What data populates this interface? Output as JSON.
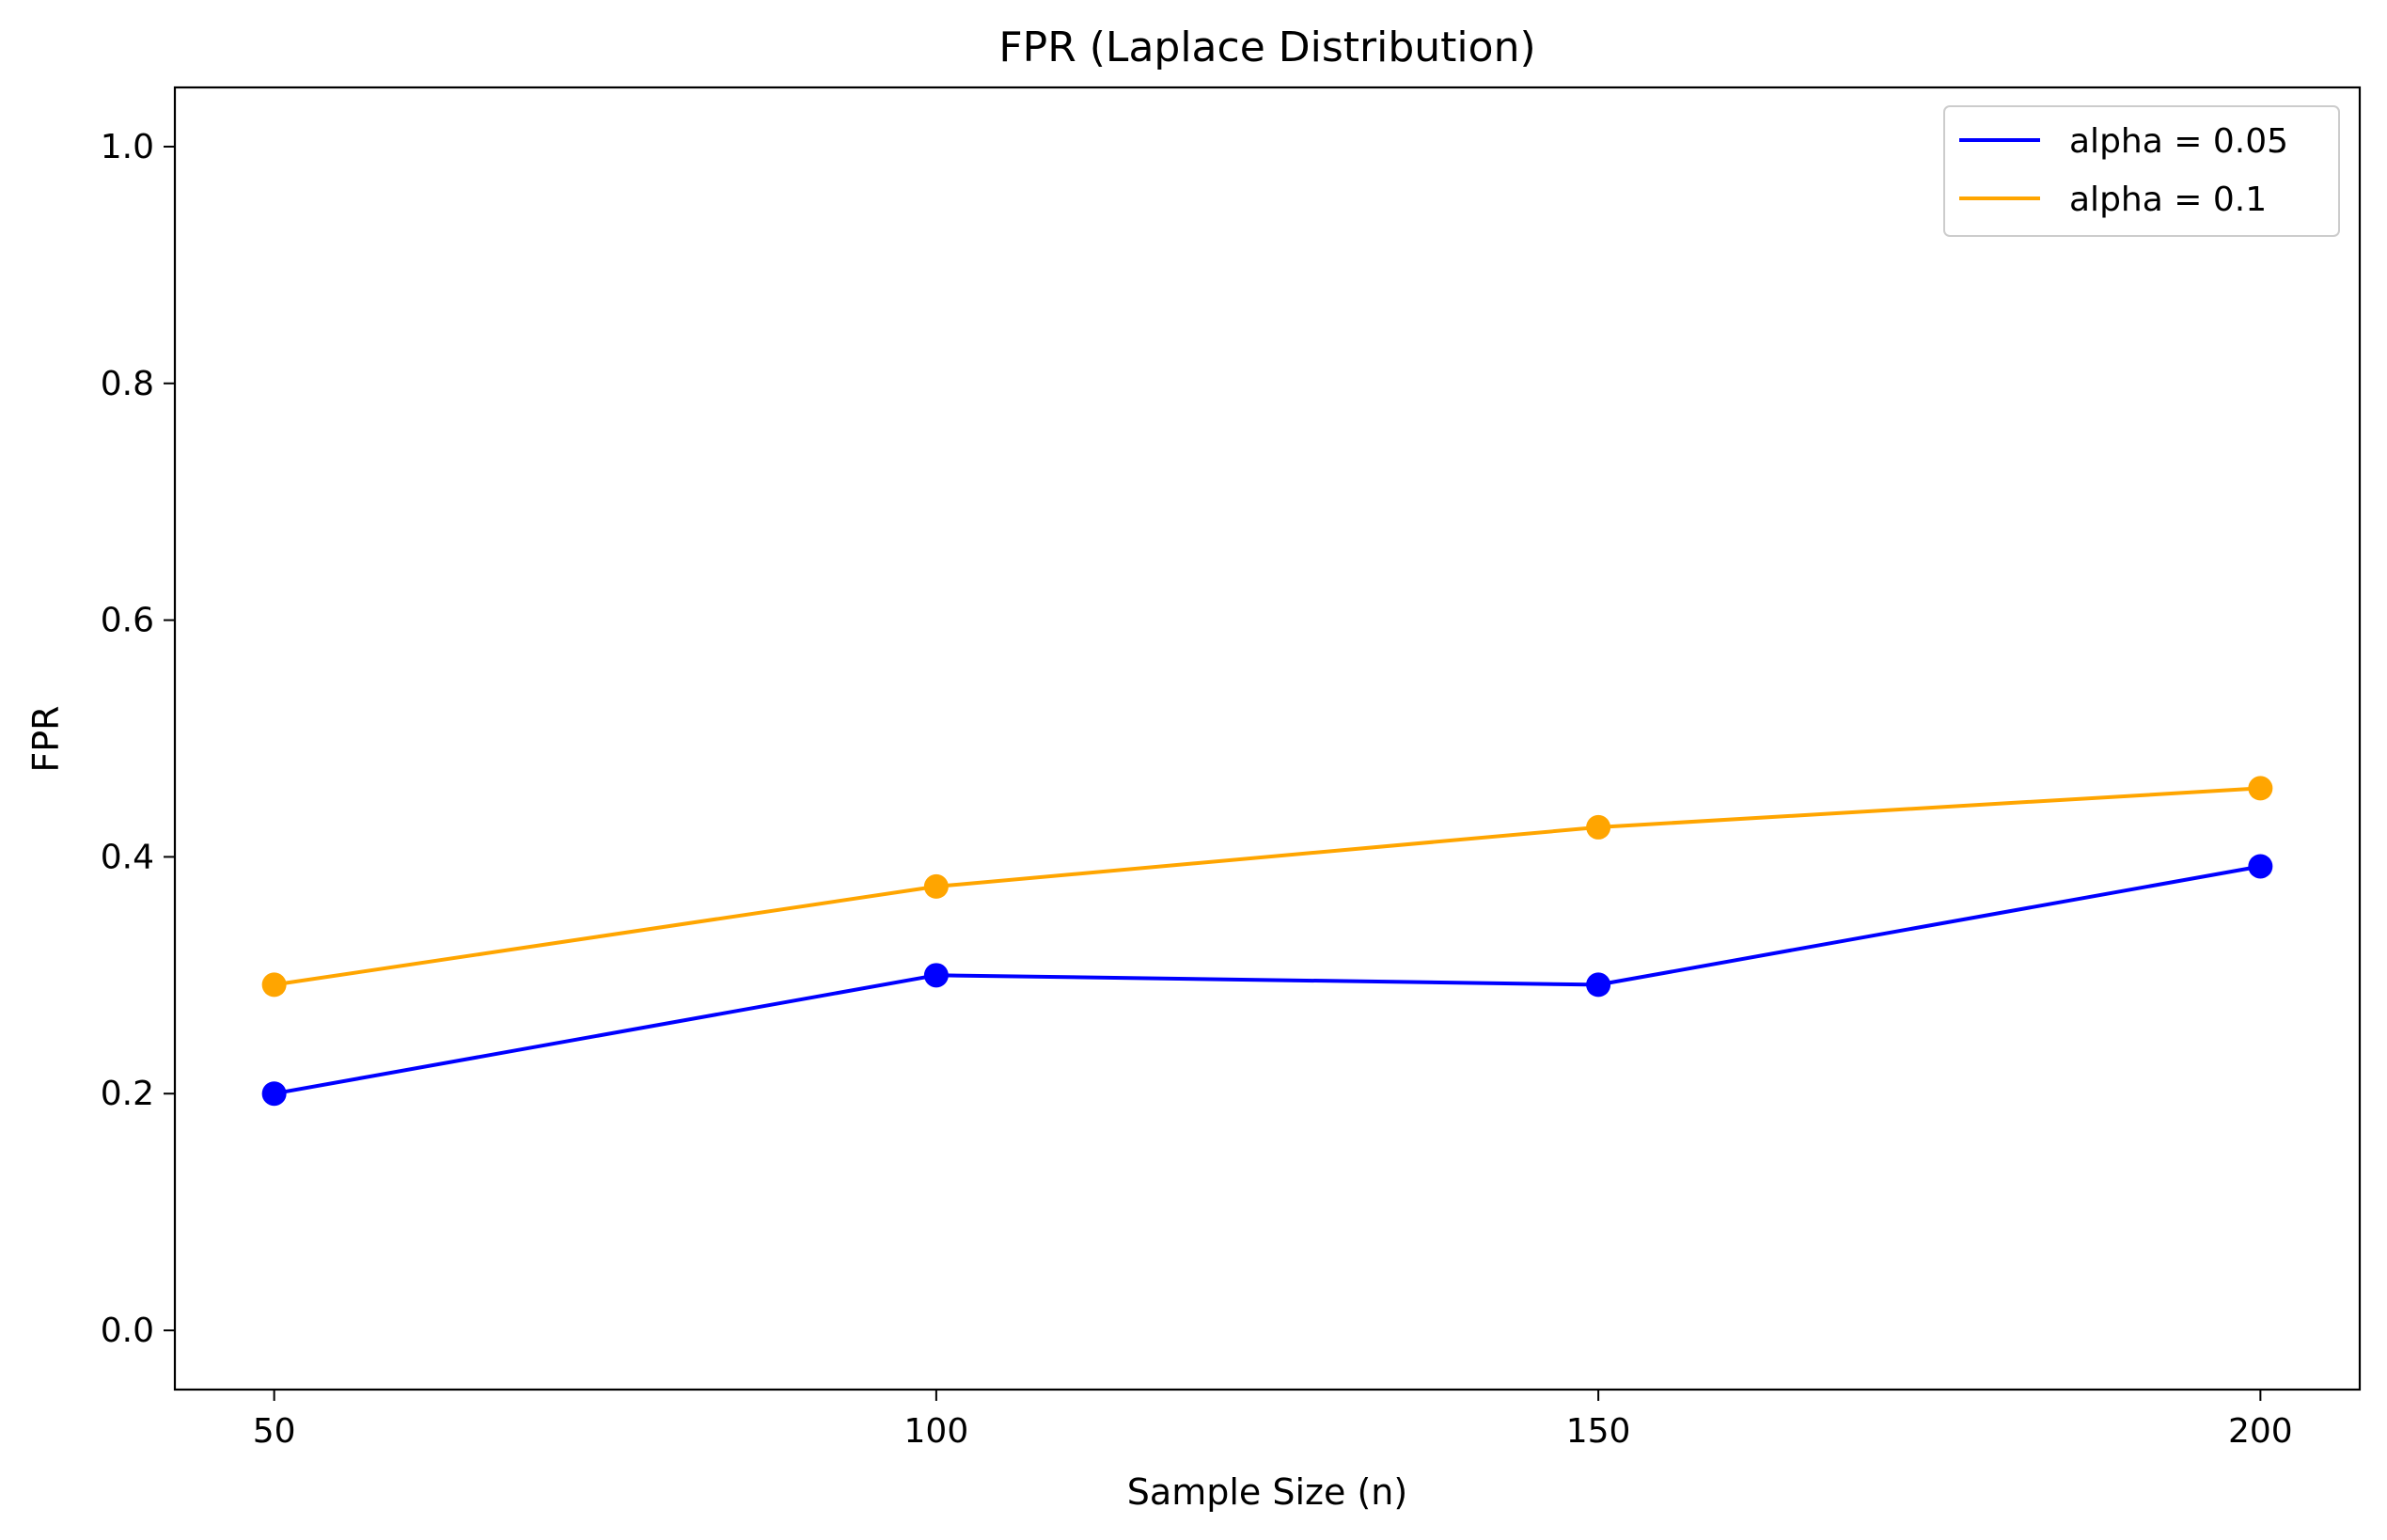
{
  "chart_data": {
    "type": "line",
    "title": "FPR (Laplace Distribution)",
    "xlabel": "Sample Size (n)",
    "ylabel": "FPR",
    "x": [
      50,
      100,
      150,
      200
    ],
    "xticks": [
      "50",
      "100",
      "150",
      "200"
    ],
    "yticks": [
      "0.0",
      "0.2",
      "0.4",
      "0.6",
      "0.8",
      "1.0"
    ],
    "ytick_values": [
      0.0,
      0.2,
      0.4,
      0.6,
      0.8,
      1.0
    ],
    "xlim": [
      42.5,
      207.5
    ],
    "ylim": [
      -0.05,
      1.05
    ],
    "grid": false,
    "legend_position": "upper right",
    "markers": "circle",
    "series": [
      {
        "name": "alpha = 0.05",
        "color": "#0000ff",
        "values": [
          0.2,
          0.3,
          0.292,
          0.392
        ]
      },
      {
        "name": "alpha = 0.1",
        "color": "#ffa500",
        "values": [
          0.292,
          0.375,
          0.425,
          0.458
        ]
      }
    ]
  }
}
